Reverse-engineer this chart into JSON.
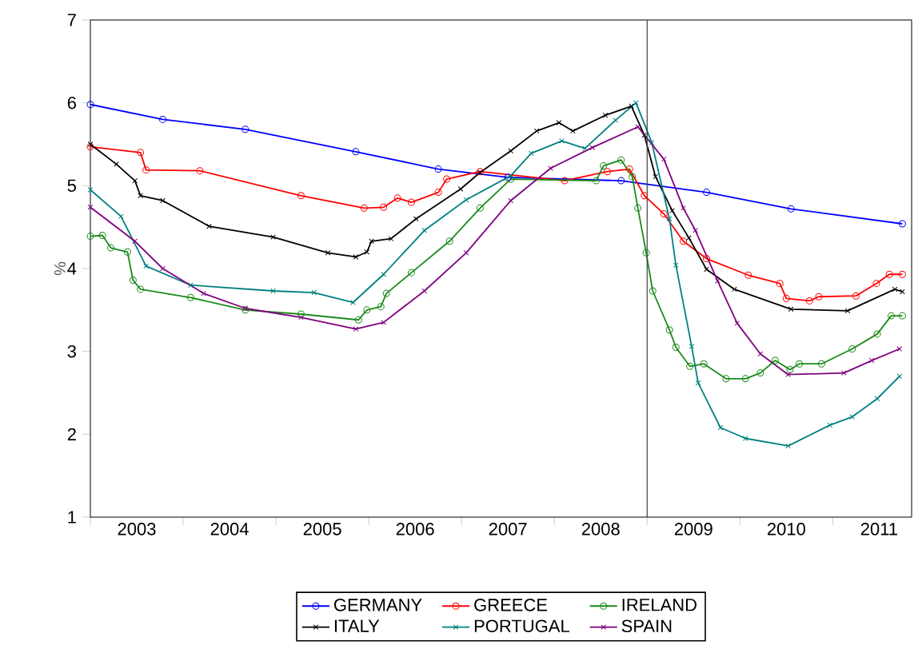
{
  "chart_data": {
    "type": "line",
    "ylabel": "%",
    "xlim": [
      2003,
      2011.85
    ],
    "ylim": [
      1,
      7
    ],
    "yticks": [
      1,
      2,
      3,
      4,
      5,
      6,
      7
    ],
    "xticks": [
      {
        "value": 2003,
        "label": null
      },
      {
        "value": 2004,
        "label": null
      },
      {
        "value": 2005,
        "label": null
      },
      {
        "value": 2006,
        "label": null
      },
      {
        "value": 2007,
        "label": null
      },
      {
        "value": 2008,
        "label": null
      },
      {
        "value": 2009,
        "label": null
      },
      {
        "value": 2010,
        "label": null
      },
      {
        "value": 2011,
        "label": null
      },
      {
        "value": 2003.5,
        "label": "2003"
      },
      {
        "value": 2004.5,
        "label": "2004"
      },
      {
        "value": 2005.5,
        "label": "2005"
      },
      {
        "value": 2006.5,
        "label": "2006"
      },
      {
        "value": 2007.5,
        "label": "2007"
      },
      {
        "value": 2008.5,
        "label": "2008"
      },
      {
        "value": 2009.5,
        "label": "2009"
      },
      {
        "value": 2010.5,
        "label": "2010"
      },
      {
        "value": 2011.5,
        "label": "2011"
      }
    ],
    "grid": false,
    "legend": "bottom",
    "line_style": "solid",
    "ref_lines": [
      {
        "axis": "x",
        "value": 2009,
        "color": "#404040"
      }
    ],
    "series": [
      {
        "name": "GERMANY",
        "color": "#0000ff",
        "marker": "circle",
        "x": [
          2003.0,
          2003.78,
          2004.67,
          2005.86,
          2006.75,
          2007.5,
          2008.72,
          2009.64,
          2010.55,
          2011.75
        ],
        "values": [
          5.98,
          5.8,
          5.68,
          5.41,
          5.2,
          5.1,
          5.06,
          4.92,
          4.72,
          4.54
        ]
      },
      {
        "name": "GREECE",
        "color": "#ff0000",
        "marker": "circle",
        "x": [
          2003.0,
          2003.54,
          2003.6,
          2004.18,
          2005.27,
          2005.95,
          2006.16,
          2006.31,
          2006.46,
          2006.75,
          2006.84,
          2007.2,
          2008.11,
          2008.57,
          2008.81,
          2008.97,
          2009.18,
          2009.39,
          2009.64,
          2010.09,
          2010.43,
          2010.5,
          2010.75,
          2010.85,
          2011.25,
          2011.47,
          2011.61,
          2011.75
        ],
        "values": [
          5.47,
          5.4,
          5.19,
          5.18,
          4.88,
          4.73,
          4.74,
          4.85,
          4.8,
          4.92,
          5.08,
          5.17,
          5.06,
          5.17,
          5.2,
          4.88,
          4.66,
          4.33,
          4.12,
          3.92,
          3.82,
          3.64,
          3.61,
          3.66,
          3.67,
          3.82,
          3.93,
          3.93
        ]
      },
      {
        "name": "IRELAND",
        "color": "#1a8a1a",
        "marker": "circle",
        "x": [
          2003.0,
          2003.13,
          2003.22,
          2003.4,
          2003.46,
          2003.54,
          2004.08,
          2004.67,
          2005.27,
          2005.89,
          2005.98,
          2006.13,
          2006.19,
          2006.46,
          2006.87,
          2007.2,
          2007.53,
          2008.45,
          2008.53,
          2008.72,
          2008.84,
          2008.9,
          2008.99,
          2009.06,
          2009.24,
          2009.31,
          2009.46,
          2009.61,
          2009.85,
          2010.06,
          2010.22,
          2010.38,
          2010.54,
          2010.64,
          2010.88,
          2011.21,
          2011.48,
          2011.63,
          2011.75
        ],
        "values": [
          4.39,
          4.4,
          4.25,
          4.2,
          3.86,
          3.75,
          3.65,
          3.5,
          3.45,
          3.38,
          3.5,
          3.54,
          3.7,
          3.95,
          4.33,
          4.73,
          5.08,
          5.06,
          5.24,
          5.31,
          5.11,
          4.73,
          4.19,
          3.73,
          3.26,
          3.05,
          2.82,
          2.85,
          2.67,
          2.67,
          2.74,
          2.89,
          2.78,
          2.85,
          2.85,
          3.03,
          3.21,
          3.43,
          3.43
        ]
      },
      {
        "name": "ITALY",
        "color": "#000000",
        "marker": "cross",
        "x": [
          2003.0,
          2003.28,
          2003.48,
          2003.54,
          2003.78,
          2004.28,
          2004.97,
          2005.56,
          2005.86,
          2005.98,
          2006.03,
          2006.24,
          2006.51,
          2006.99,
          2007.2,
          2007.53,
          2007.81,
          2008.05,
          2008.2,
          2008.55,
          2008.83,
          2008.97,
          2009.09,
          2009.27,
          2009.45,
          2009.64,
          2009.94,
          2010.55,
          2011.16,
          2011.67,
          2011.75
        ],
        "values": [
          5.5,
          5.26,
          5.06,
          4.88,
          4.82,
          4.51,
          4.38,
          4.19,
          4.14,
          4.2,
          4.33,
          4.36,
          4.6,
          4.96,
          5.16,
          5.42,
          5.66,
          5.76,
          5.66,
          5.85,
          5.96,
          5.61,
          5.11,
          4.7,
          4.37,
          3.99,
          3.75,
          3.51,
          3.49,
          3.75,
          3.72
        ]
      },
      {
        "name": "PORTUGAL",
        "color": "#008080",
        "marker": "cross",
        "x": [
          2003.0,
          2003.33,
          2003.6,
          2004.08,
          2004.97,
          2005.41,
          2005.83,
          2006.16,
          2006.6,
          2007.05,
          2007.53,
          2007.75,
          2008.08,
          2008.33,
          2008.66,
          2008.88,
          2009.05,
          2009.24,
          2009.31,
          2009.48,
          2009.55,
          2009.79,
          2010.06,
          2010.52,
          2010.97,
          2011.21,
          2011.48,
          2011.72
        ],
        "values": [
          4.95,
          4.63,
          4.03,
          3.8,
          3.73,
          3.71,
          3.59,
          3.93,
          4.46,
          4.83,
          5.12,
          5.39,
          5.54,
          5.45,
          5.79,
          6.0,
          5.52,
          4.6,
          4.04,
          3.06,
          2.62,
          2.08,
          1.95,
          1.86,
          2.11,
          2.21,
          2.43,
          2.7
        ]
      },
      {
        "name": "SPAIN",
        "color": "#800080",
        "marker": "cross",
        "x": [
          2003.0,
          2003.48,
          2003.78,
          2004.22,
          2004.67,
          2005.27,
          2005.86,
          2006.16,
          2006.6,
          2007.05,
          2007.53,
          2007.96,
          2008.41,
          2008.9,
          2009.18,
          2009.39,
          2009.52,
          2009.76,
          2009.97,
          2010.22,
          2010.52,
          2011.12,
          2011.42,
          2011.72
        ],
        "values": [
          4.74,
          4.33,
          4.0,
          3.7,
          3.52,
          3.41,
          3.27,
          3.35,
          3.73,
          4.19,
          4.82,
          5.21,
          5.46,
          5.71,
          5.32,
          4.73,
          4.46,
          3.85,
          3.34,
          2.97,
          2.72,
          2.74,
          2.89,
          3.03
        ]
      }
    ]
  }
}
